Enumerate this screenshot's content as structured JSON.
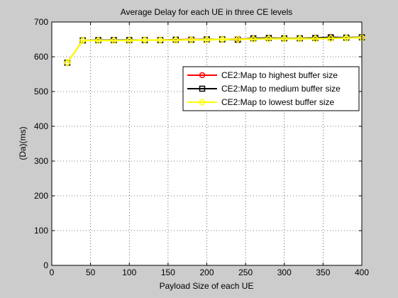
{
  "chart_data": {
    "type": "line",
    "title": "Average Delay for each UE in three CE levels",
    "xlabel": "Payload Size of each UE",
    "ylabel": "(Da)(ms)",
    "xlim": [
      0,
      400
    ],
    "ylim": [
      0,
      700
    ],
    "xticks": [
      0,
      50,
      100,
      150,
      200,
      250,
      300,
      350,
      400
    ],
    "yticks": [
      0,
      100,
      200,
      300,
      400,
      500,
      600,
      700
    ],
    "grid": true,
    "legend_position": "right",
    "x": [
      20,
      40,
      60,
      80,
      100,
      120,
      140,
      160,
      180,
      200,
      220,
      240,
      260,
      280,
      300,
      320,
      340,
      360,
      380,
      400
    ],
    "series": [
      {
        "name": "CE2:Map to highest buffer size",
        "color": "#ff0000",
        "marker": "circle",
        "values": [
          583,
          647,
          647,
          648,
          648,
          648,
          648,
          649,
          650,
          650,
          650,
          651,
          652,
          653,
          653,
          653,
          654,
          655,
          655,
          656
        ]
      },
      {
        "name": "CE2:Map to medium buffer size",
        "color": "#000000",
        "marker": "square",
        "values": [
          583,
          647,
          648,
          648,
          648,
          648,
          648,
          649,
          649,
          650,
          650,
          649,
          653,
          654,
          653,
          653,
          654,
          656,
          655,
          656
        ]
      },
      {
        "name": "CE2:Map to lowest buffer size",
        "color": "#ffff00",
        "marker": "diamond",
        "values": [
          583,
          647,
          647,
          647,
          647,
          648,
          648,
          648,
          649,
          649,
          650,
          650,
          651,
          652,
          652,
          652,
          652,
          653,
          654,
          655
        ]
      }
    ]
  }
}
